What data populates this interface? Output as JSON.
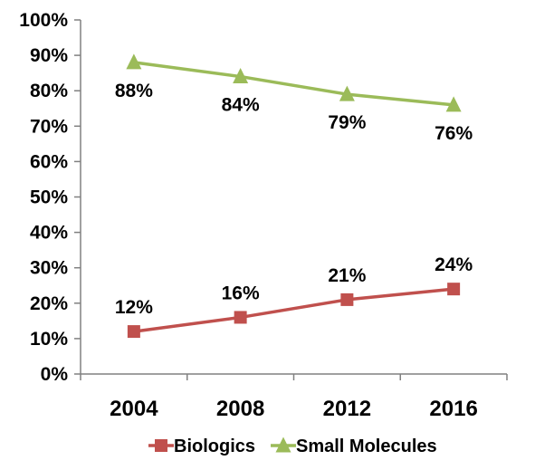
{
  "chart_data": {
    "type": "line",
    "categories": [
      "2004",
      "2008",
      "2012",
      "2016"
    ],
    "series": [
      {
        "name": "Biologics",
        "values": [
          12,
          16,
          21,
          24
        ],
        "labels": [
          "12%",
          "16%",
          "21%",
          "24%"
        ],
        "color": "#C0504D",
        "marker": "square"
      },
      {
        "name": "Small Molecules",
        "values": [
          88,
          84,
          79,
          76
        ],
        "labels": [
          "88%",
          "84%",
          "79%",
          "76%"
        ],
        "color": "#9BBB59",
        "marker": "triangle"
      }
    ],
    "ylim": [
      0,
      100
    ],
    "yticks": [
      0,
      10,
      20,
      30,
      40,
      50,
      60,
      70,
      80,
      90,
      100
    ],
    "ytick_labels": [
      "0%",
      "10%",
      "20%",
      "30%",
      "40%",
      "50%",
      "60%",
      "70%",
      "80%",
      "90%",
      "100%"
    ],
    "grid": false,
    "legend_position": "bottom"
  }
}
